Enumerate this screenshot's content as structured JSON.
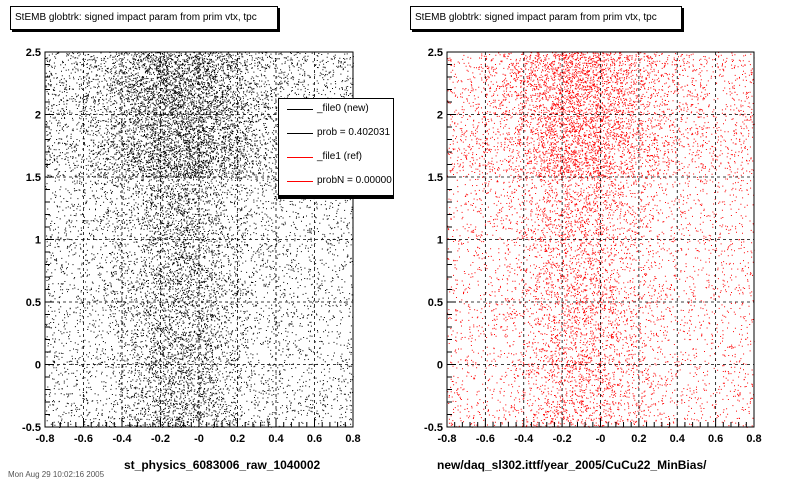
{
  "panels": [
    {
      "title": "StEMB globtrk: signed impact param from prim vtx, tpc",
      "xlabel": "st_physics_6083006_raw_1040002",
      "color": "#000000"
    },
    {
      "title": "StEMB globtrk: signed impact param from prim vtx, tpc",
      "xlabel": "new/daq_sl302.ittf/year_2005/CuCu22_MinBias/",
      "color": "#ff0000"
    }
  ],
  "legend": {
    "entries": [
      {
        "label": "_file0 (new)",
        "color": "#000000"
      },
      {
        "label": "prob = 0.402031",
        "color": "#000000"
      },
      {
        "label": "_file1 (ref)",
        "color": "#ff0000"
      },
      {
        "label": "probN = 0.00000",
        "color": "#ff0000"
      }
    ]
  },
  "footer": "Mon Aug 29 10:02:16 2005",
  "chart_data": [
    {
      "type": "scatter",
      "title": "StEMB globtrk: signed impact param from prim vtx, tpc",
      "xlabel": "st_physics_6083006_raw_1040002",
      "ylabel": "",
      "xlim": [
        -0.8,
        0.8
      ],
      "ylim": [
        -0.5,
        2.5
      ],
      "xticks": [
        "-0.8",
        "-0.6",
        "-0.4",
        "-0.2",
        "-0",
        "0.2",
        "0.4",
        "0.6",
        "0.8"
      ],
      "yticks": [
        "-0.5",
        "0",
        "0.5",
        "1",
        "1.5",
        "2",
        "2.5"
      ],
      "grid": true,
      "color": "#000000",
      "description_values": {
        "dense_band_y": [
          1.5,
          2.5
        ],
        "peak_x": -0.1
      }
    },
    {
      "type": "scatter",
      "title": "StEMB globtrk: signed impact param from prim vtx, tpc",
      "xlabel": "new/daq_sl302.ittf/year_2005/CuCu22_MinBias/",
      "ylabel": "",
      "xlim": [
        -0.8,
        0.8
      ],
      "ylim": [
        -0.5,
        2.5
      ],
      "xticks": [
        "-0.8",
        "-0.6",
        "-0.4",
        "-0.2",
        "-0",
        "0.2",
        "0.4",
        "0.6",
        "0.8"
      ],
      "yticks": [
        "-0.5",
        "0",
        "0.5",
        "1",
        "1.5",
        "2",
        "2.5"
      ],
      "grid": true,
      "color": "#ff0000",
      "description_values": {
        "dense_band_y": [
          1.5,
          2.5
        ],
        "peak_x": -0.1
      }
    }
  ]
}
